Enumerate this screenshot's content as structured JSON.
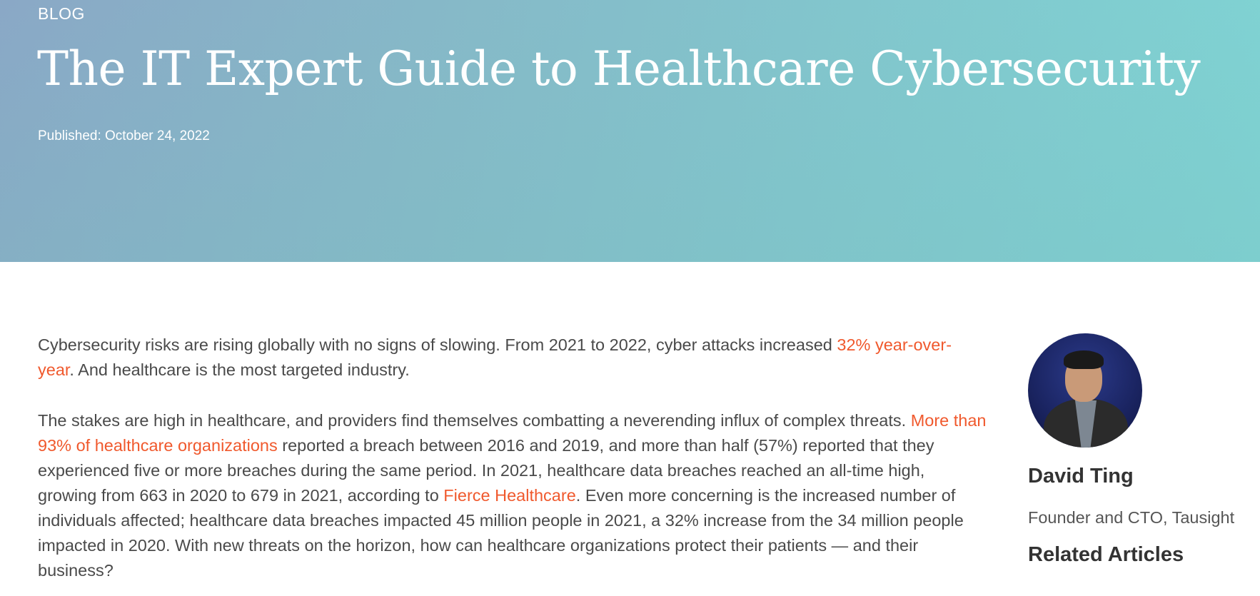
{
  "hero": {
    "tag": "BLOG",
    "title": "The IT Expert Guide to Healthcare Cybersecurity",
    "published": "Published: October 24, 2022"
  },
  "article": {
    "p1": {
      "text_before": "Cybersecurity risks are rising globally with no signs of slowing. From 2021 to 2022, cyber attacks increased ",
      "link": "32% year-over-year",
      "text_after": ". And healthcare is the most targeted industry."
    },
    "p2": {
      "text_before": "The stakes are high in healthcare, and providers find themselves combatting a neverending influx of complex threats. ",
      "link1": "More than 93% of healthcare organizations",
      "text_middle": " reported a breach between 2016 and 2019, and more than half (57%) reported that they experienced five or more breaches during the same period. In 2021, healthcare data breaches reached an all-time high, growing from 663 in 2020 to 679 in 2021, according to ",
      "link2": "Fierce Healthcare",
      "text_after": ". Even more concerning is the increased number of individuals affected; healthcare data breaches impacted 45 million people in 2021, a 32% increase from the 34 million people impacted in 2020. With new threats on the horizon, how can healthcare organizations protect their patients — and their business?"
    }
  },
  "sidebar": {
    "author_name": "David Ting",
    "author_title": "Founder and CTO, Tausight",
    "related_heading": "Related Articles"
  },
  "colors": {
    "link": "#f0592d",
    "hero_start": "#8aa8c6",
    "hero_end": "#7fd3d3"
  }
}
